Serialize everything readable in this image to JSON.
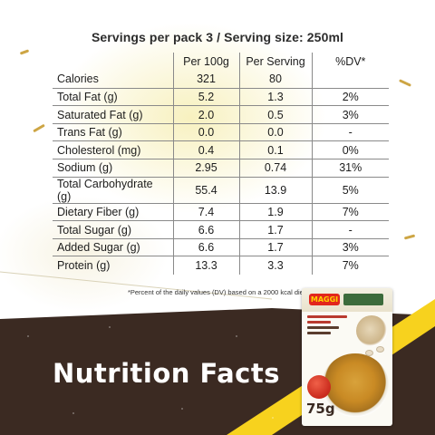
{
  "header": {
    "text": "Servings per pack 3 / Serving size: 250ml"
  },
  "table": {
    "columns": [
      "",
      "Per 100g",
      "Per Serving",
      "%DV*"
    ],
    "rows": [
      {
        "name": "Calories",
        "per100g": "321",
        "perServing": "80",
        "dv": ""
      },
      {
        "name": "Total Fat (g)",
        "per100g": "5.2",
        "perServing": "1.3",
        "dv": "2%"
      },
      {
        "name": "Saturated Fat (g)",
        "per100g": "2.0",
        "perServing": "0.5",
        "dv": "3%"
      },
      {
        "name": "Trans Fat (g)",
        "per100g": "0.0",
        "perServing": "0.0",
        "dv": "-"
      },
      {
        "name": "Cholesterol (mg)",
        "per100g": "0.4",
        "perServing": "0.1",
        "dv": "0%"
      },
      {
        "name": "Sodium (g)",
        "per100g": "2.95",
        "perServing": "0.74",
        "dv": "31%"
      },
      {
        "name": "Total Carbohydrate (g)",
        "per100g": "55.4",
        "perServing": "13.9",
        "dv": "5%"
      },
      {
        "name": "Dietary Fiber (g)",
        "per100g": "7.4",
        "perServing": "1.9",
        "dv": "7%"
      },
      {
        "name": "Total Sugar (g)",
        "per100g": "6.6",
        "perServing": "1.7",
        "dv": "-"
      },
      {
        "name": "Added Sugar (g)",
        "per100g": "6.6",
        "perServing": "1.7",
        "dv": "3%"
      },
      {
        "name": "Protein (g)",
        "per100g": "13.3",
        "perServing": "3.3",
        "dv": "7%"
      }
    ]
  },
  "footnote": "*Percent of the daily values (DV) based on a 2000 kcal diet.",
  "title": "Nutrition Facts",
  "product": {
    "brand": "MAGGI",
    "weight": "75g",
    "image": "soup-pack-image"
  },
  "colors": {
    "dark_panel": "#3b2a22",
    "accent_yellow": "#f5ecaa",
    "brand_red": "#e2261d",
    "title_text": "#ffffff"
  }
}
